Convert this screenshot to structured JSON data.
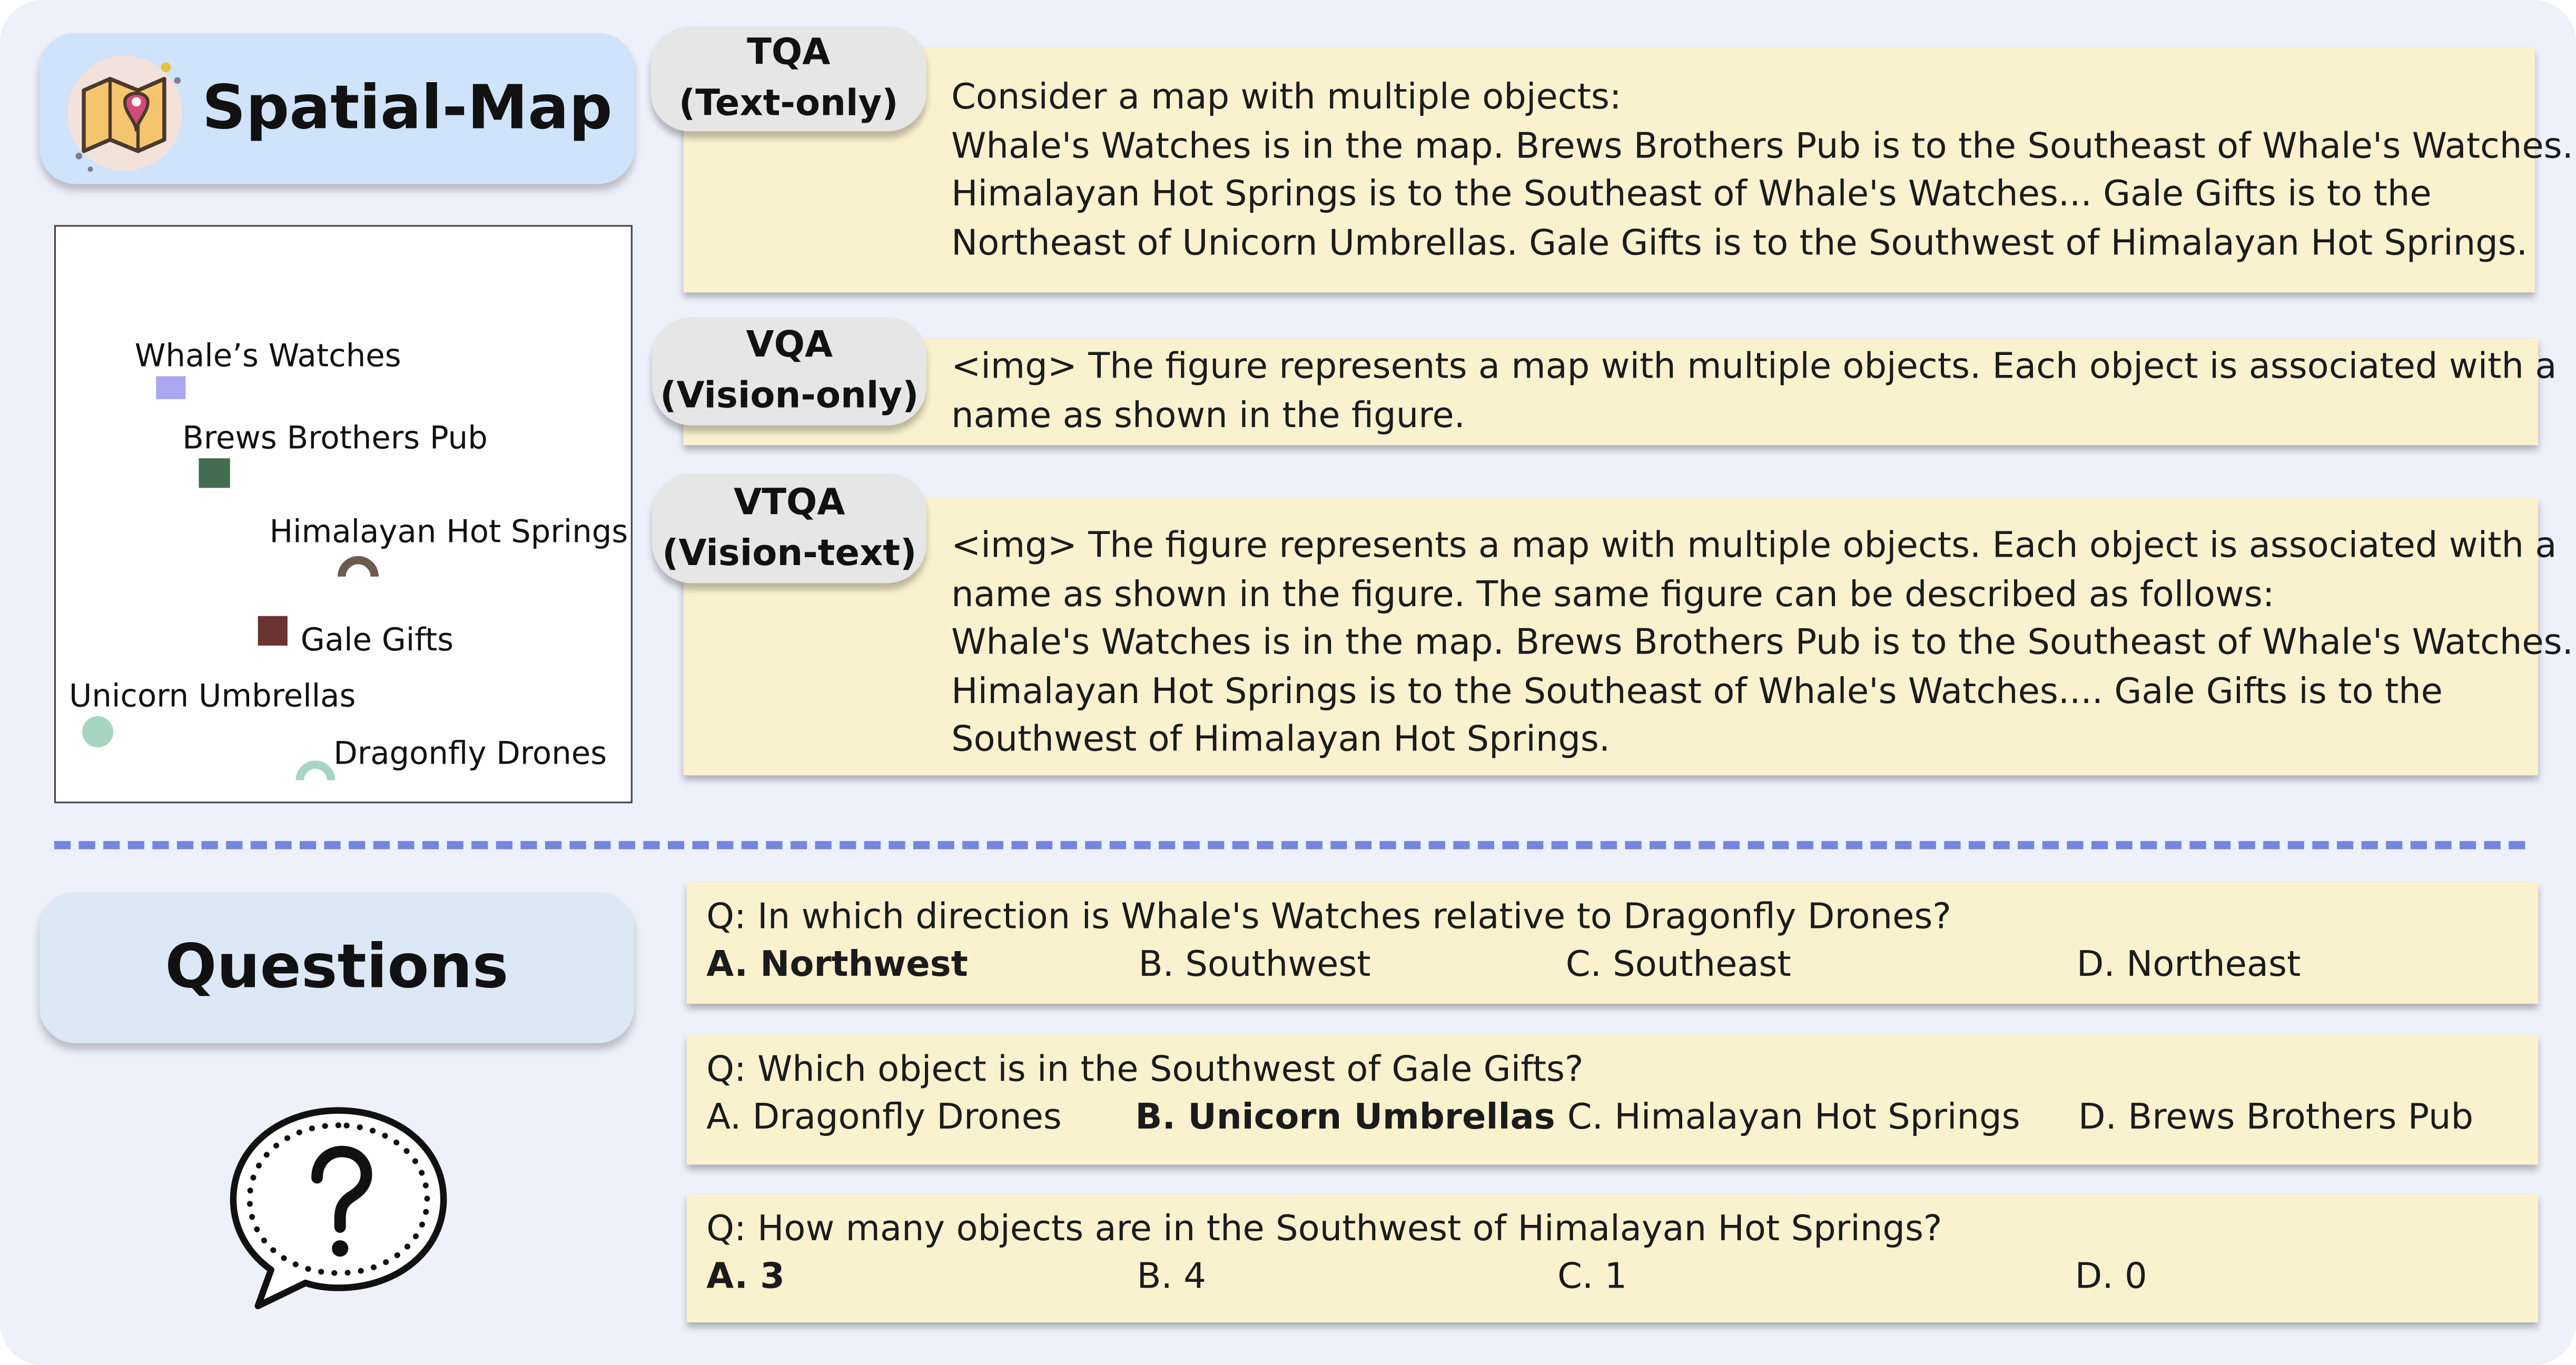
{
  "top_section": {
    "title": "Spatial-Map",
    "icon": "folded-map-pin-icon"
  },
  "map": {
    "labels": [
      "Whale’s  Watches",
      "Brews Brothers Pub",
      "Himalayan Hot Springs",
      "Gale Gifts",
      "Unicorn Umbrellas",
      "Dragonfly Drones"
    ],
    "marker_colors": {
      "whales_watches": "#aaa8f2",
      "brews_brothers_pub": "#436b50",
      "himalayan_hot_springs": "#6e5a4e",
      "gale_gifts": "#6c3333",
      "unicorn_umbrellas": "#a8d5c2",
      "dragonfly_drones": "#a8d5c2"
    }
  },
  "tqa": {
    "tag_line1": "TQA",
    "tag_line2": "(Text-only)",
    "lines": [
      "Consider a map with multiple objects:",
      "Whale's Watches is in the map.  Brews Brothers Pub is to the Southeast of Whale's Watches.",
      "Himalayan Hot Springs is to the Southeast of Whale's Watches... Gale Gifts is to the",
      "Northeast of Unicorn Umbrellas. Gale Gifts is to the Southwest of Himalayan Hot Springs."
    ]
  },
  "vqa": {
    "tag_line1": "VQA",
    "tag_line2": "(Vision-only)",
    "lines": [
      "<img> The figure represents a map with multiple objects. Each object is associated with a",
      "name as shown in the figure."
    ]
  },
  "vtqa": {
    "tag_line1": "VTQA",
    "tag_line2": "(Vision-text)",
    "lines": [
      "<img> The figure represents a map with multiple objects. Each object is associated with a",
      "name as shown in the figure.  The same figure can be described as follows:",
      "Whale's Watches is in the map.  Brews Brothers Pub is to the Southeast of Whale's Watches.",
      "Himalayan Hot Springs is to the Southeast of Whale's Watches....  Gale Gifts is to the",
      "Southwest of Himalayan Hot Springs."
    ]
  },
  "questions_section": {
    "title": "Questions",
    "icon": "speech-bubble-question-icon"
  },
  "questions": [
    {
      "text": "Q: In which direction is Whale's Watches relative to Dragonfly Drones?",
      "options": [
        "A. Northwest",
        "B. Southwest",
        "C. Southeast",
        "D. Northeast"
      ],
      "answer_index": 0
    },
    {
      "text": "Q: Which object is in the Southwest of Gale Gifts?",
      "options": [
        "A. Dragonfly Drones",
        "B. Unicorn Umbrellas",
        "C. Himalayan Hot Springs",
        "D. Brews Brothers Pub"
      ],
      "answer_index": 1
    },
    {
      "text": "Q: How many objects are in the Southwest of Himalayan Hot Springs?",
      "options": [
        "A. 3",
        "B. 4",
        "C. 1",
        "D. 0"
      ],
      "answer_index": 0
    }
  ],
  "colors": {
    "background": "#eef0fb",
    "title_card": "#cfe3fa",
    "questions_card": "#dde8f7",
    "text_box": "#faf1cf",
    "tag_pill": "#e6e6e6",
    "divider": "#7585e0"
  }
}
